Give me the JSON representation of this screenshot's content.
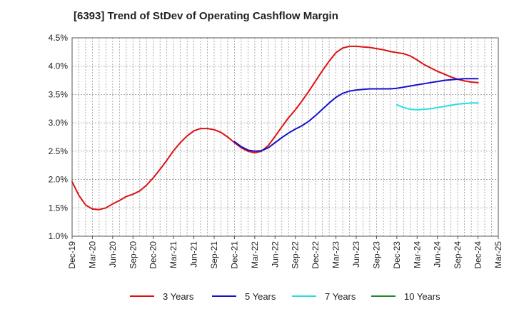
{
  "title": "[6393]  Trend of StDev of Operating Cashflow Margin",
  "legend": {
    "items": [
      {
        "label": "3 Years",
        "color": "#dd1111"
      },
      {
        "label": "5 Years",
        "color": "#1111cc"
      },
      {
        "label": "7 Years",
        "color": "#22e0e0"
      },
      {
        "label": "10 Years",
        "color": "#228822"
      }
    ]
  },
  "chart_data": {
    "type": "line",
    "title": "[6393]  Trend of StDev of Operating Cashflow Margin",
    "xlabel": "",
    "ylabel": "",
    "ylim": [
      1.0,
      4.5
    ],
    "y_ticks": [
      "4.5%",
      "4.0%",
      "3.5%",
      "3.0%",
      "2.5%",
      "2.0%",
      "1.5%",
      "1.0%"
    ],
    "x_ticks": [
      "Dec-19",
      "Mar-20",
      "Jun-20",
      "Sep-20",
      "Dec-20",
      "Mar-21",
      "Jun-21",
      "Sep-21",
      "Dec-21",
      "Mar-22",
      "Jun-22",
      "Sep-22",
      "Dec-22",
      "Mar-23",
      "Jun-23",
      "Sep-23",
      "Dec-23",
      "Mar-24",
      "Jun-24",
      "Sep-24",
      "Dec-24",
      "Mar-25"
    ],
    "grid": true,
    "legend_position": "bottom",
    "series": [
      {
        "name": "3 Years",
        "color": "#dd1111",
        "x": [
          "Dec-19",
          "Jan-20",
          "Feb-20",
          "Mar-20",
          "Apr-20",
          "May-20",
          "Jun-20",
          "Jul-20",
          "Aug-20",
          "Sep-20",
          "Oct-20",
          "Nov-20",
          "Dec-20",
          "Jan-21",
          "Feb-21",
          "Mar-21",
          "Apr-21",
          "May-21",
          "Jun-21",
          "Jul-21",
          "Aug-21",
          "Sep-21",
          "Oct-21",
          "Nov-21",
          "Dec-21",
          "Jan-22",
          "Feb-22",
          "Mar-22",
          "Apr-22",
          "May-22",
          "Jun-22",
          "Jul-22",
          "Aug-22",
          "Sep-22",
          "Oct-22",
          "Nov-22",
          "Dec-22",
          "Jan-23",
          "Feb-23",
          "Mar-23",
          "Apr-23",
          "May-23",
          "Jun-23",
          "Jul-23",
          "Aug-23",
          "Sep-23",
          "Oct-23",
          "Nov-23",
          "Dec-23",
          "Jan-24",
          "Feb-24",
          "Mar-24",
          "Apr-24",
          "May-24",
          "Jun-24",
          "Jul-24",
          "Aug-24",
          "Sep-24",
          "Oct-24",
          "Nov-24",
          "Dec-24"
        ],
        "values": [
          1.96,
          1.72,
          1.55,
          1.48,
          1.47,
          1.5,
          1.57,
          1.63,
          1.7,
          1.74,
          1.8,
          1.9,
          2.03,
          2.18,
          2.34,
          2.51,
          2.65,
          2.77,
          2.86,
          2.9,
          2.9,
          2.88,
          2.83,
          2.75,
          2.65,
          2.56,
          2.5,
          2.47,
          2.5,
          2.6,
          2.76,
          2.93,
          3.09,
          3.23,
          3.39,
          3.56,
          3.74,
          3.92,
          4.09,
          4.24,
          4.32,
          4.35,
          4.35,
          4.34,
          4.33,
          4.31,
          4.29,
          4.26,
          4.24,
          4.22,
          4.18,
          4.11,
          4.03,
          3.97,
          3.91,
          3.86,
          3.81,
          3.77,
          3.74,
          3.72,
          3.71
        ]
      },
      {
        "name": "5 Years",
        "color": "#1111cc",
        "x": [
          "Dec-21",
          "Jan-22",
          "Feb-22",
          "Mar-22",
          "Apr-22",
          "May-22",
          "Jun-22",
          "Jul-22",
          "Aug-22",
          "Sep-22",
          "Oct-22",
          "Nov-22",
          "Dec-22",
          "Jan-23",
          "Feb-23",
          "Mar-23",
          "Apr-23",
          "May-23",
          "Jun-23",
          "Jul-23",
          "Aug-23",
          "Sep-23",
          "Oct-23",
          "Nov-23",
          "Dec-23",
          "Jan-24",
          "Feb-24",
          "Mar-24",
          "Apr-24",
          "May-24",
          "Jun-24",
          "Jul-24",
          "Aug-24",
          "Sep-24",
          "Oct-24",
          "Nov-24",
          "Dec-24"
        ],
        "values": [
          2.67,
          2.58,
          2.52,
          2.5,
          2.51,
          2.56,
          2.65,
          2.74,
          2.82,
          2.89,
          2.95,
          3.03,
          3.13,
          3.24,
          3.35,
          3.45,
          3.52,
          3.56,
          3.58,
          3.59,
          3.6,
          3.6,
          3.6,
          3.6,
          3.61,
          3.63,
          3.65,
          3.67,
          3.69,
          3.71,
          3.73,
          3.75,
          3.76,
          3.77,
          3.78,
          3.78,
          3.78
        ]
      },
      {
        "name": "7 Years",
        "color": "#22e0e0",
        "x": [
          "Dec-23",
          "Jan-24",
          "Feb-24",
          "Mar-24",
          "Apr-24",
          "May-24",
          "Jun-24",
          "Jul-24",
          "Aug-24",
          "Sep-24",
          "Oct-24",
          "Nov-24",
          "Dec-24"
        ],
        "values": [
          3.32,
          3.27,
          3.24,
          3.23,
          3.24,
          3.25,
          3.27,
          3.29,
          3.31,
          3.33,
          3.34,
          3.35,
          3.35
        ]
      },
      {
        "name": "10 Years",
        "color": "#228822",
        "x": [],
        "values": []
      }
    ]
  }
}
